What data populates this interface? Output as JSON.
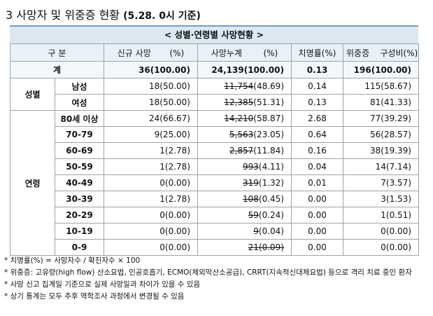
{
  "page": {
    "title": "3 사망자 및 위중증 현황",
    "date": "(5.28. 0시 기준)"
  },
  "table": {
    "title": "< 성별·연령별 사망현황 >",
    "headers": {
      "category": "구 분",
      "new_deaths": "신규 사망       (%)",
      "cum_deaths": "사망누계        (%)",
      "fatality": "치명률(%)",
      "critical": "위중증    구성비(%)"
    },
    "total": {
      "label": "계",
      "new": "36(100.00)",
      "cum_num": "24,139",
      "cum_pct": "(100.00)",
      "fatality": "0.13",
      "critical": "196(100.00)"
    },
    "groups": [
      {
        "label": "성별",
        "rows": [
          {
            "label": "남성",
            "new": "18(50.00)",
            "cum_num": "11,754",
            "cum_pct": "(48.69)",
            "fatality": "0.14",
            "critical": "115(58.67)"
          },
          {
            "label": "여성",
            "new": "18(50.00)",
            "cum_num": "12,385",
            "cum_pct": "(51.31)",
            "fatality": "0.13",
            "critical": "81(41.33)"
          }
        ]
      },
      {
        "label": "연령",
        "rows": [
          {
            "label": "80세 이상",
            "new": "24(66.67)",
            "cum_num": "14,210",
            "cum_pct": "(58.87)",
            "fatality": "2.68",
            "critical": "77(39.29)"
          },
          {
            "label": "70-79",
            "new": "9(25.00)",
            "cum_num": "5,563",
            "cum_pct": "(23.05)",
            "fatality": "0.64",
            "critical": "56(28.57)"
          },
          {
            "label": "60-69",
            "new": "1(2.78)",
            "cum_num": "2,857",
            "cum_pct": "(11.84)",
            "fatality": "0.16",
            "critical": "38(19.39)"
          },
          {
            "label": "50-59",
            "new": "1(2.78)",
            "cum_num": "993",
            "cum_pct": "(4.11)",
            "fatality": "0.04",
            "critical": "14(7.14)"
          },
          {
            "label": "40-49",
            "new": "0(0.00)",
            "cum_num": "319",
            "cum_pct": "(1.32)",
            "fatality": "0.01",
            "critical": "7(3.57)"
          },
          {
            "label": "30-39",
            "new": "1(2.78)",
            "cum_num": "108",
            "cum_pct": "(0.45)",
            "fatality": "0.00",
            "critical": "3(1.53)"
          },
          {
            "label": "20-29",
            "new": "0(0.00)",
            "cum_num": "59",
            "cum_pct": "(0.24)",
            "fatality": "0.00",
            "critical": "1(0.51)"
          },
          {
            "label": "10-19",
            "new": "0(0.00)",
            "cum_num": "9",
            "cum_pct": "(0.04)",
            "fatality": "0.00",
            "critical": "0(0.00)"
          },
          {
            "label": "0-9",
            "new": "0(0.00)",
            "cum_num": "21",
            "cum_pct": "(0.09)",
            "fatality": "0.00",
            "critical": "0(0.00)"
          }
        ]
      }
    ]
  },
  "notes": [
    "* 치명률(%) = 사망자수 / 확진자수 × 100",
    "* 위중증: 고유량(high flow) 산소요법, 인공호흡기, ECMO(체외막산소공급), CRRT(지속적신대체요법) 등으로 격리 치료 중인 환자",
    "* 사망 신고 집계일 기준으로 실제 사망일과 차이가 있을 수 있음",
    "* 상기 통계는 모두 추후 역학조사 과정에서 변경될 수 있음"
  ]
}
